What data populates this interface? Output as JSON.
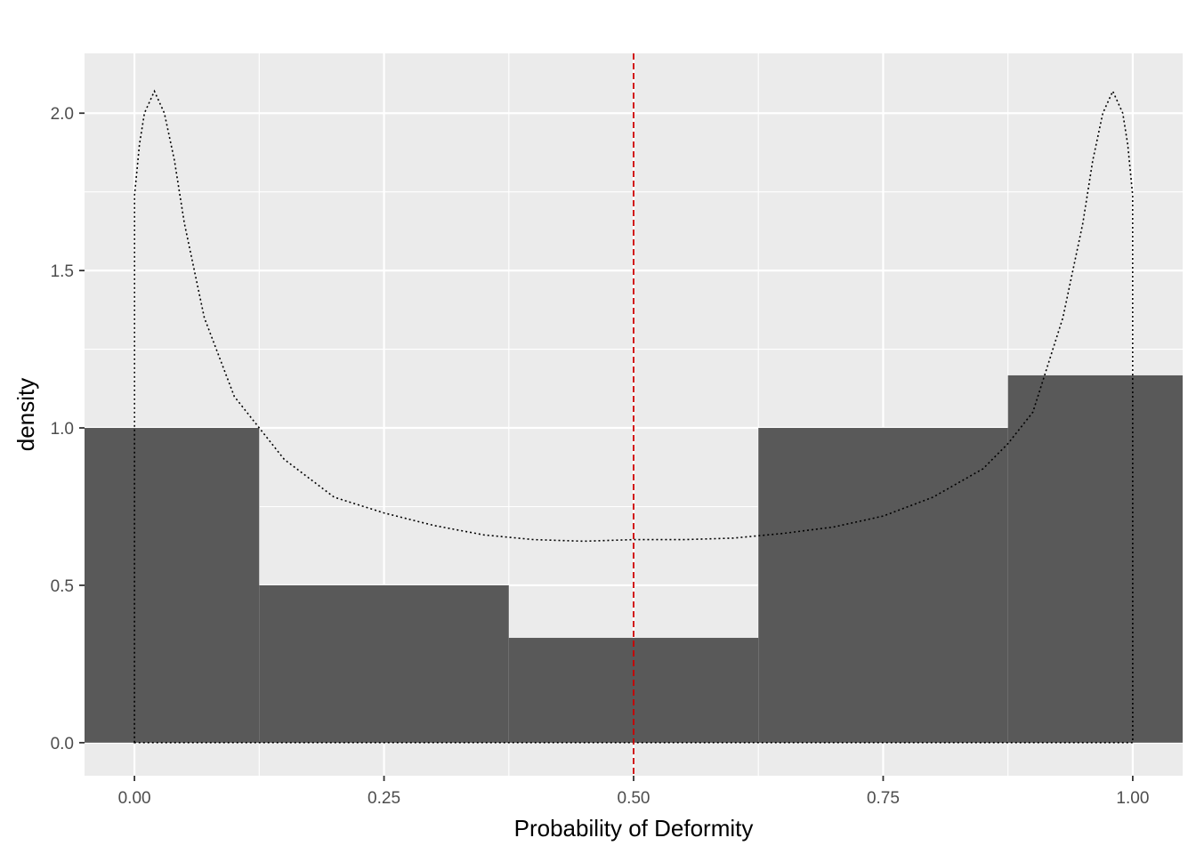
{
  "chart_data": {
    "type": "bar",
    "title": "",
    "xlabel": "Probability of Deformity",
    "ylabel": "density",
    "xlim": [
      -0.05,
      1.05
    ],
    "ylim": [
      -0.105,
      2.19
    ],
    "x_ticks": [
      "0.00",
      "0.25",
      "0.50",
      "0.75",
      "1.00"
    ],
    "x_tick_values": [
      0,
      0.25,
      0.5,
      0.75,
      1
    ],
    "y_ticks": [
      "0.0",
      "0.5",
      "1.0",
      "1.5",
      "2.0"
    ],
    "y_tick_values": [
      0,
      0.5,
      1,
      1.5,
      2
    ],
    "grid": true,
    "panel_background": "#ebebeb",
    "histogram": {
      "fill": "#595959",
      "bins": [
        {
          "x0": -0.125,
          "x1": 0.125,
          "density": 1.0
        },
        {
          "x0": 0.125,
          "x1": 0.375,
          "density": 0.5
        },
        {
          "x0": 0.375,
          "x1": 0.625,
          "density": 0.333
        },
        {
          "x0": 0.625,
          "x1": 0.875,
          "density": 1.0
        },
        {
          "x0": 0.875,
          "x1": 1.125,
          "density": 1.167
        }
      ]
    },
    "density_curve": {
      "style": "dotted",
      "color": "#000000",
      "x": [
        0,
        0.0001,
        0.005,
        0.01,
        0.02,
        0.03,
        0.04,
        0.05,
        0.07,
        0.1,
        0.125,
        0.15,
        0.2,
        0.25,
        0.3,
        0.35,
        0.4,
        0.45,
        0.5,
        0.55,
        0.6,
        0.65,
        0.7,
        0.75,
        0.8,
        0.85,
        0.875,
        0.9,
        0.93,
        0.95,
        0.96,
        0.97,
        0.98,
        0.99,
        0.995,
        0.9999,
        1
      ],
      "y": [
        0,
        1.74,
        1.9,
        2.0,
        2.07,
        2.0,
        1.85,
        1.65,
        1.35,
        1.1,
        1.0,
        0.9,
        0.78,
        0.73,
        0.69,
        0.66,
        0.645,
        0.64,
        0.645,
        0.645,
        0.65,
        0.665,
        0.685,
        0.72,
        0.78,
        0.87,
        0.95,
        1.05,
        1.35,
        1.65,
        1.85,
        2.0,
        2.07,
        2.0,
        1.9,
        1.74,
        0
      ]
    },
    "reference_line": {
      "x": 0.5,
      "color": "#cc0000",
      "style": "dashed"
    }
  }
}
